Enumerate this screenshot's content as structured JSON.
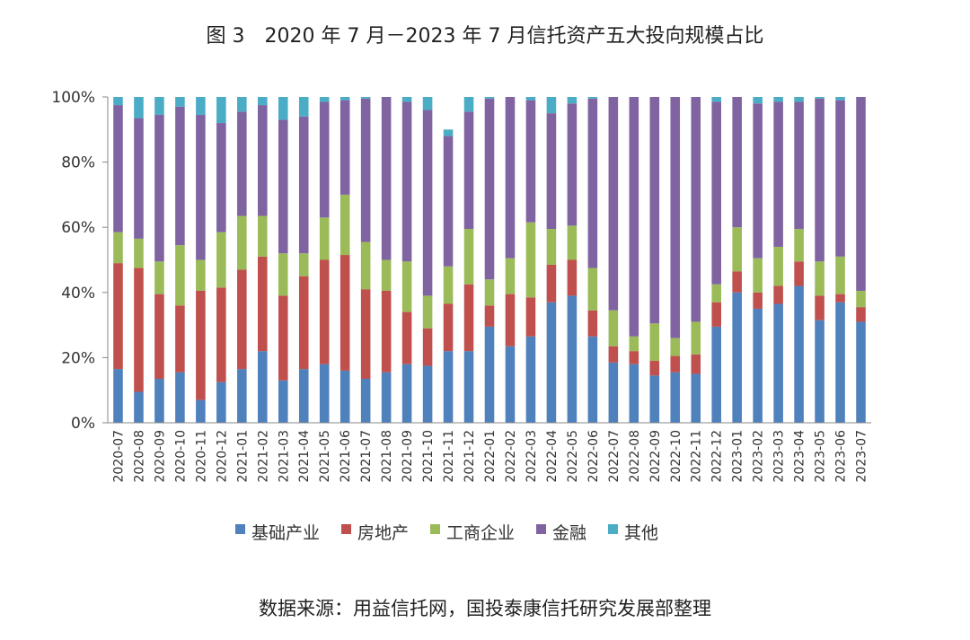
{
  "title": "图 3　2020 年 7 月－2023 年 7 月信托资产五大投向规模占比",
  "source": "数据来源：用益信托网，国投泰康信托研究发展部整理",
  "chart_data": {
    "type": "bar",
    "stacked": true,
    "ylim": [
      0,
      100
    ],
    "yticks": [
      "0%",
      "20%",
      "40%",
      "60%",
      "80%",
      "100%"
    ],
    "legend_position": "bottom",
    "categories": [
      "2020-07",
      "2020-08",
      "2020-09",
      "2020-10",
      "2020-11",
      "2020-12",
      "2021-01",
      "2021-02",
      "2021-03",
      "2021-04",
      "2021-05",
      "2021-06",
      "2021-07",
      "2021-08",
      "2021-09",
      "2021-10",
      "2021-11",
      "2021-12",
      "2022-01",
      "2022-02",
      "2022-03",
      "2022-04",
      "2022-05",
      "2022-06",
      "2022-07",
      "2022-08",
      "2022-09",
      "2022-10",
      "2022-11",
      "2022-12",
      "2023-01",
      "2023-02",
      "2023-03",
      "2023-04",
      "2023-05",
      "2023-06",
      "2023-07"
    ],
    "series": [
      {
        "name": "基础产业",
        "color": "#4F81BD",
        "values": [
          16.5,
          9.5,
          13.5,
          15.5,
          7,
          12.5,
          16.5,
          22,
          13,
          16.5,
          18,
          16,
          13.5,
          15.5,
          18,
          17.5,
          22,
          22,
          29.5,
          23.5,
          26.5,
          37,
          39,
          26.5,
          18.5,
          18,
          14.5,
          15.5,
          15,
          29.5,
          40,
          35,
          36.5,
          42,
          31.5,
          37,
          31
        ]
      },
      {
        "name": "房地产",
        "color": "#C0504D",
        "values": [
          32.5,
          38,
          26,
          20.5,
          33.5,
          29,
          30.5,
          29,
          26,
          28.5,
          32,
          35.5,
          27.5,
          25,
          16,
          11.5,
          14.5,
          20.5,
          6.5,
          16,
          12,
          11.5,
          11,
          8,
          5,
          4,
          4.5,
          5,
          6,
          7.5,
          6.5,
          5,
          5.5,
          7.5,
          7.5,
          2.5,
          4.5
        ]
      },
      {
        "name": "工商企业",
        "color": "#9BBB59",
        "values": [
          9.5,
          9,
          10,
          18.5,
          9.5,
          17,
          16.5,
          12.5,
          13,
          7,
          13,
          18.5,
          14.5,
          9.5,
          15.5,
          10,
          11.5,
          17,
          8,
          11,
          23,
          11,
          10.5,
          13,
          11,
          4.5,
          11.5,
          5.5,
          10,
          5.5,
          13.5,
          10.5,
          12,
          10,
          10.5,
          11.5,
          5
        ]
      },
      {
        "name": "金融",
        "color": "#8064A2",
        "values": [
          39,
          37,
          45,
          42.5,
          44.5,
          33.5,
          32,
          34,
          41,
          42,
          35.5,
          29,
          44,
          50,
          49,
          57,
          40,
          36,
          55.5,
          49.5,
          37.5,
          35.5,
          37.5,
          52,
          65.5,
          73.5,
          69.5,
          74,
          69,
          56,
          40,
          47.5,
          44.5,
          39,
          50,
          48,
          59.5
        ]
      },
      {
        "name": "其他",
        "color": "#4BACC6",
        "values": [
          2.5,
          6.5,
          5.5,
          3,
          5.5,
          8,
          4.5,
          2.5,
          7,
          6,
          1.5,
          1,
          0.5,
          0,
          1.5,
          4,
          2,
          4.5,
          0.5,
          0,
          1,
          5,
          2,
          0.5,
          0,
          0,
          0,
          0,
          0,
          1.5,
          0,
          2,
          1.5,
          1.5,
          0.5,
          1,
          0
        ]
      }
    ]
  }
}
